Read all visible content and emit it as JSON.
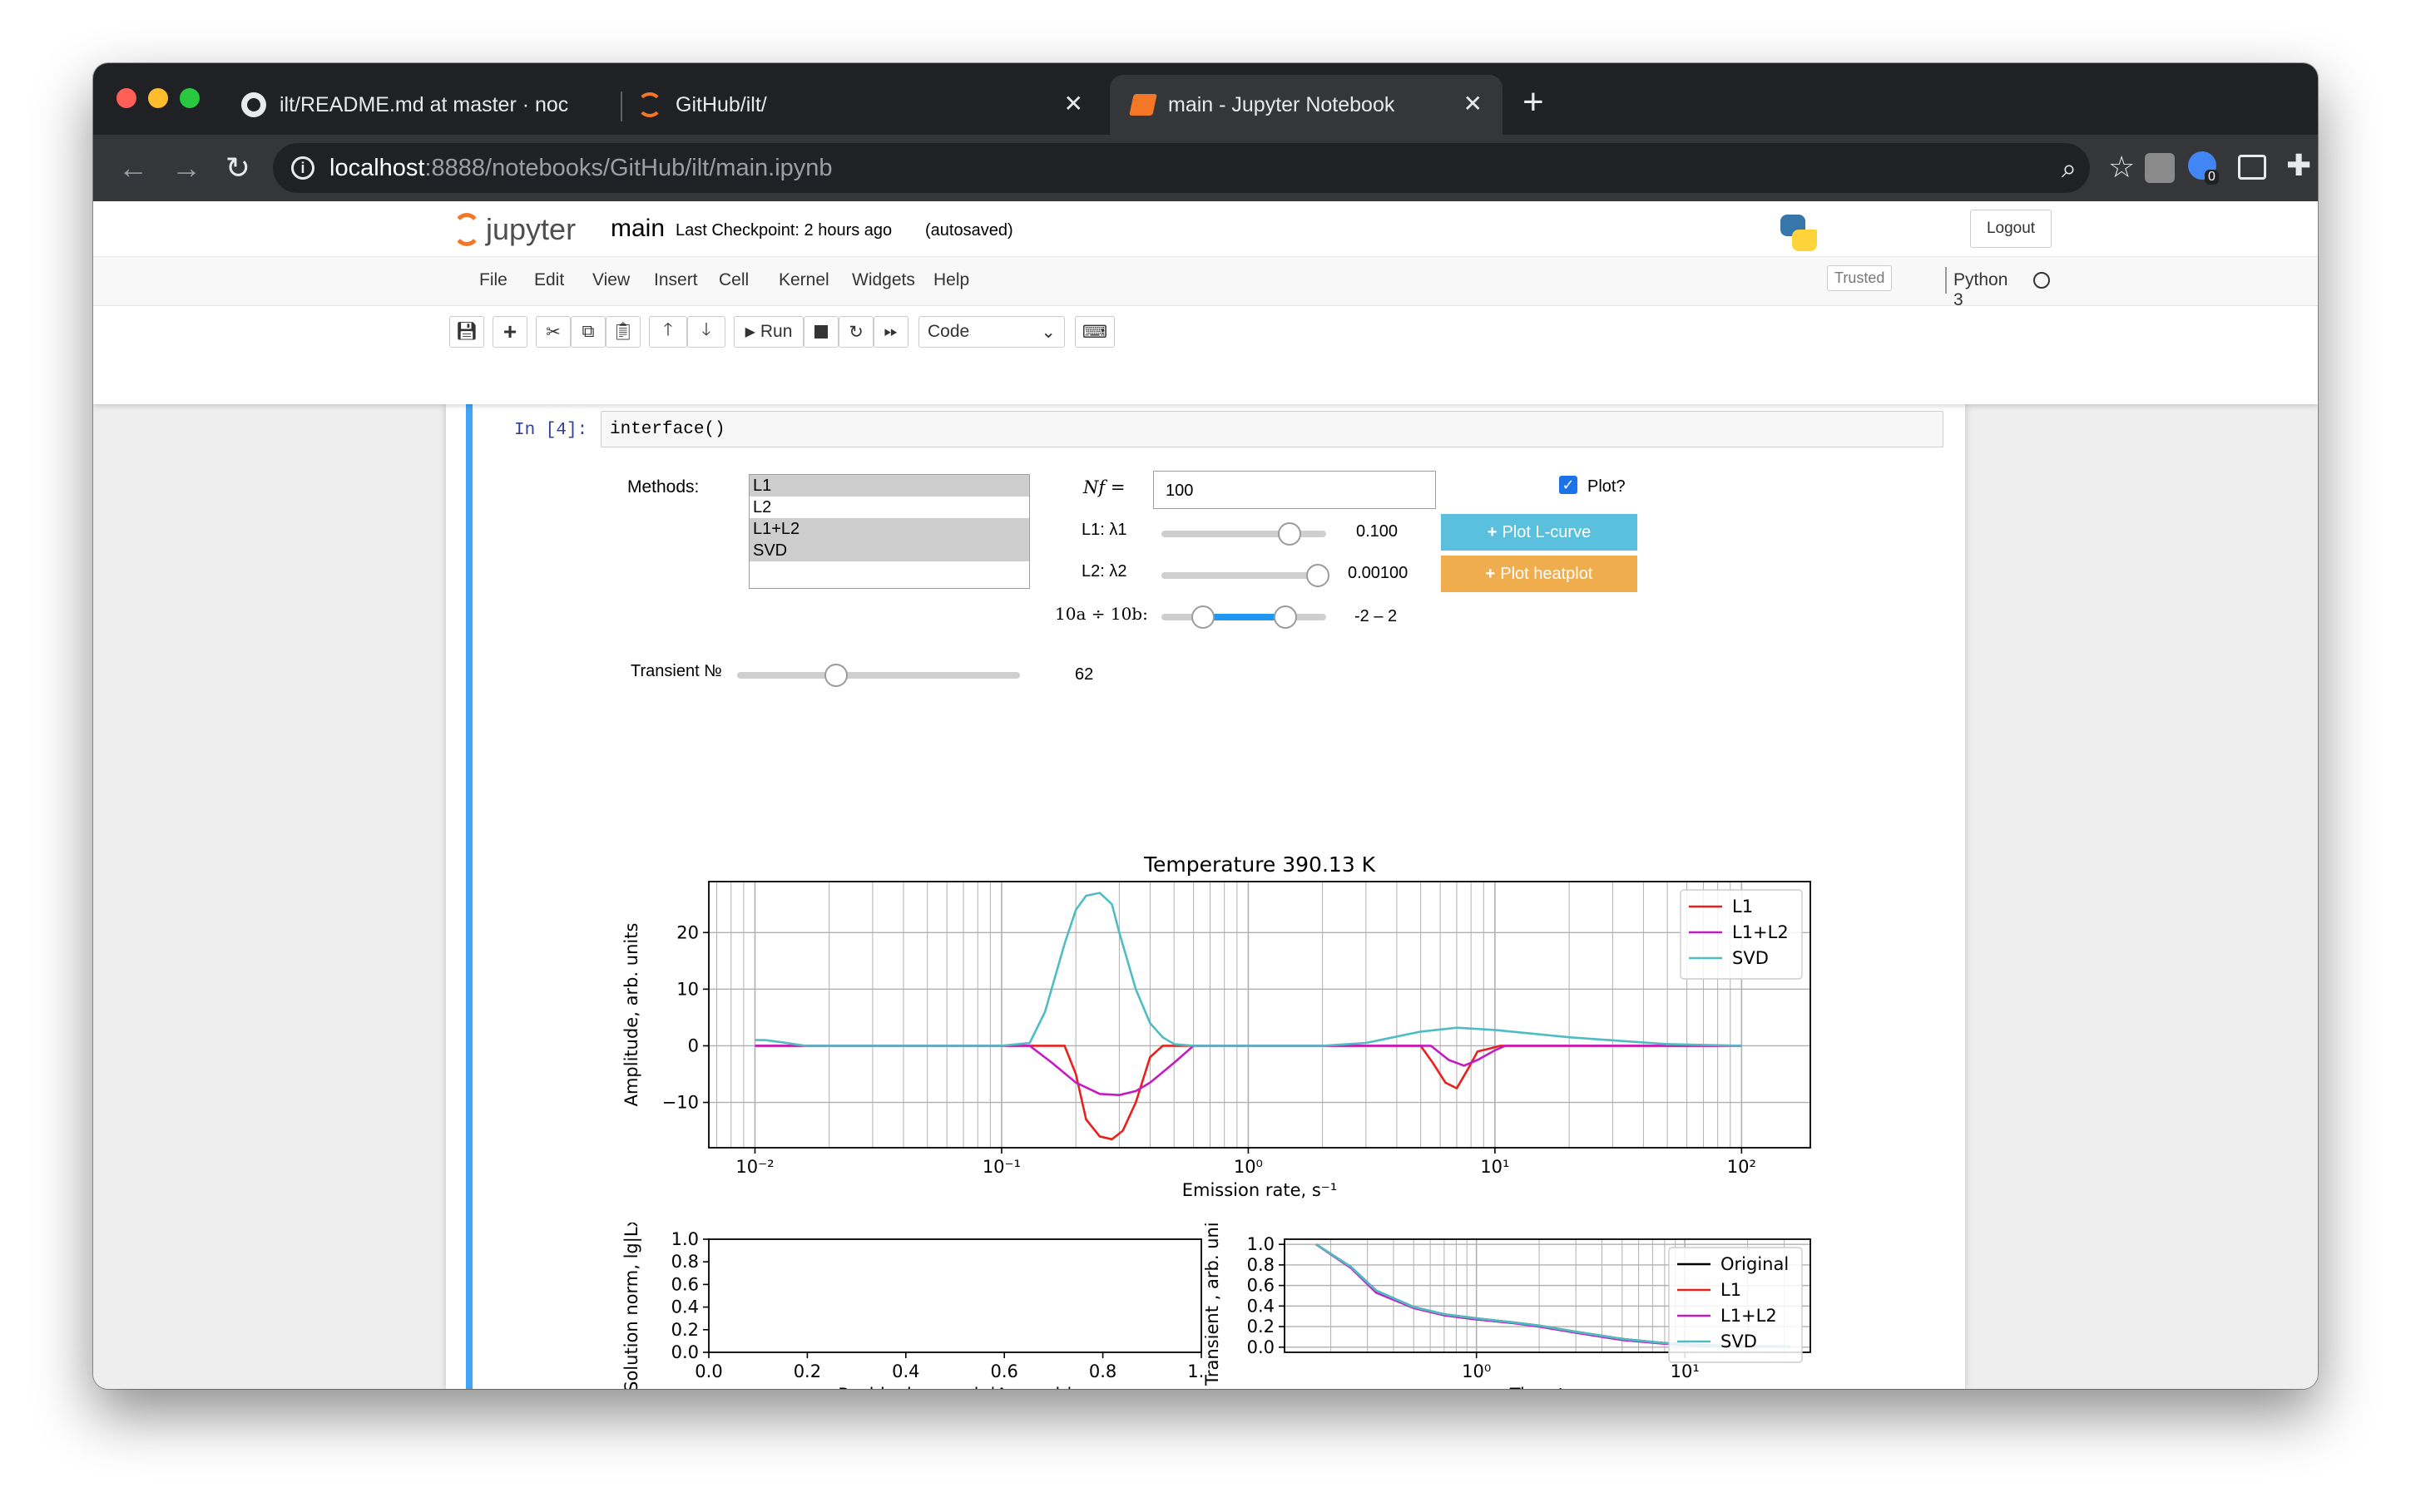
{
  "browser": {
    "tabs": [
      {
        "title": "ilt/README.md at master · noc",
        "icon": "github-icon"
      },
      {
        "title": "GitHub/ilt/",
        "icon": "jupyter-icon"
      },
      {
        "title": "main - Jupyter Notebook",
        "icon": "notebook-icon"
      }
    ],
    "url_host": "localhost",
    "url_path": ":8888/notebooks/GitHub/ilt/main.ipynb",
    "extension_badge": "0"
  },
  "jupyter": {
    "logo_text": "jupyter",
    "notebook_name": "main",
    "checkpoint": "Last Checkpoint: 2 hours ago",
    "autosaved": "(autosaved)",
    "logout": "Logout",
    "menu": [
      "File",
      "Edit",
      "View",
      "Insert",
      "Cell",
      "Kernel",
      "Widgets",
      "Help"
    ],
    "trusted": "Trusted",
    "kernel": "Python 3",
    "run_label": "Run",
    "cell_type": "Code"
  },
  "cell": {
    "prompt": "In [4]:",
    "code": "interface()"
  },
  "widgets": {
    "methods_label": "Methods:",
    "methods": [
      {
        "label": "L1",
        "selected": true
      },
      {
        "label": "L2",
        "selected": false
      },
      {
        "label": "L1+L2",
        "selected": true
      },
      {
        "label": "SVD",
        "selected": true
      }
    ],
    "nf_label": "Nf =",
    "nf_value": "100",
    "plot_label": "Plot?",
    "plot_checked": true,
    "l1_label": "L1: λ1",
    "l1_value": "0.100",
    "l1_fraction": 0.78,
    "l2_label": "L2: λ2",
    "l2_value": "0.00100",
    "l2_fraction": 0.95,
    "range_label": "10a ÷ 10b:",
    "range_value": "-2 – 2",
    "range_from": 0.25,
    "range_to": 0.75,
    "plot_lcurve": "Plot L-curve",
    "plot_heatplot": "Plot heatplot",
    "transient_label": "Transient №",
    "transient_value": "62",
    "transient_fraction": 0.35
  },
  "colors": {
    "accent": "#42a5f5",
    "lcurve_button": "#5bc0de",
    "heatplot_button": "#f0ad4e",
    "l1": "#e8211d",
    "l1l2": "#c41ac4",
    "svd": "#4fbcc4",
    "original": "#000000"
  },
  "chart_data": [
    {
      "type": "line",
      "title": "Temperature 390.13 K",
      "xlabel": "Emission rate, s⁻¹",
      "ylabel": "Amplitude, arb. units",
      "xscale": "log",
      "xlim": [
        0.0065,
        190
      ],
      "ylim": [
        -18,
        29
      ],
      "xticks": [
        "10⁻²",
        "10⁻¹",
        "10⁰",
        "10¹",
        "10²"
      ],
      "yticks": [
        -10,
        0,
        10,
        20
      ],
      "legend": "top-right",
      "grid": true,
      "series": [
        {
          "name": "L1",
          "x": [
            0.01,
            0.013,
            0.05,
            0.1,
            0.13,
            0.18,
            0.2,
            0.22,
            0.25,
            0.28,
            0.31,
            0.35,
            0.4,
            0.45,
            0.6,
            1,
            3,
            5,
            5.6,
            6.3,
            7,
            7.8,
            8.5,
            9.5,
            10.5,
            20,
            100
          ],
          "y": [
            0,
            0,
            0,
            0,
            0,
            0,
            -5,
            -13,
            -16,
            -16.5,
            -15,
            -10,
            -2,
            0,
            0,
            0,
            0,
            0,
            -3,
            -6.5,
            -7.5,
            -4,
            -1,
            -0.5,
            0,
            0,
            0
          ]
        },
        {
          "name": "L1+L2",
          "x": [
            0.01,
            0.013,
            0.05,
            0.1,
            0.13,
            0.16,
            0.2,
            0.25,
            0.3,
            0.35,
            0.4,
            0.5,
            0.6,
            1,
            3,
            5.5,
            6.5,
            7.5,
            8.5,
            10,
            11,
            100
          ],
          "y": [
            0,
            0,
            0,
            0,
            0,
            -3,
            -6.5,
            -8.5,
            -8.7,
            -8,
            -6.5,
            -3,
            0,
            0,
            0,
            0,
            -2.5,
            -3.5,
            -2.5,
            -0.8,
            0,
            0
          ]
        },
        {
          "name": "SVD",
          "x": [
            0.01,
            0.011,
            0.013,
            0.016,
            0.05,
            0.1,
            0.13,
            0.15,
            0.18,
            0.2,
            0.22,
            0.25,
            0.28,
            0.3,
            0.35,
            0.4,
            0.45,
            0.5,
            0.6,
            1,
            2,
            3,
            5,
            7,
            10,
            20,
            50,
            100
          ],
          "y": [
            1,
            1,
            0.6,
            0,
            0,
            0,
            0.5,
            6,
            18,
            24,
            26.5,
            27,
            25,
            20,
            10,
            4,
            1.5,
            0.3,
            0,
            0,
            0,
            0.5,
            2.5,
            3.2,
            2.8,
            1.5,
            0.3,
            0
          ]
        }
      ]
    },
    {
      "type": "line",
      "title": "",
      "xlabel": "Residual norm, lg|Axα − b|",
      "ylabel": "Solution norm, lg|Lxα|",
      "xlim": [
        0,
        1
      ],
      "ylim": [
        0,
        1
      ],
      "xticks": [
        0.0,
        0.2,
        0.4,
        0.6,
        0.8,
        1.0
      ],
      "yticks": [
        0.0,
        0.2,
        0.4,
        0.6,
        0.8,
        1.0
      ],
      "grid": false,
      "series": []
    },
    {
      "type": "line",
      "title": "",
      "xlabel": "Time t, s",
      "ylabel": "Transient , arb. units",
      "xscale": "log",
      "xlim": [
        0.12,
        40
      ],
      "ylim": [
        -0.05,
        1.05
      ],
      "xticks": [
        "10⁰",
        "10¹"
      ],
      "yticks": [
        0.0,
        0.2,
        0.4,
        0.6,
        0.8,
        1.0
      ],
      "legend": "top-right",
      "grid": true,
      "series": [
        {
          "name": "Original",
          "x": [
            0.17,
            0.25,
            0.33,
            0.5,
            0.7,
            1,
            1.5,
            2,
            3,
            5,
            8,
            12,
            20,
            32
          ],
          "y": [
            1.0,
            0.78,
            0.55,
            0.39,
            0.32,
            0.28,
            0.24,
            0.21,
            0.15,
            0.08,
            0.04,
            0.02,
            0.01,
            0.005
          ]
        },
        {
          "name": "L1",
          "x": [
            0.17,
            0.25,
            0.33,
            0.5,
            0.7,
            1,
            1.5,
            2,
            3,
            5,
            8,
            12,
            20,
            32
          ],
          "y": [
            1.0,
            0.77,
            0.54,
            0.38,
            0.31,
            0.27,
            0.235,
            0.205,
            0.145,
            0.075,
            0.035,
            0.015,
            0.008,
            0.004
          ]
        },
        {
          "name": "L1+L2",
          "x": [
            0.17,
            0.25,
            0.33,
            0.5,
            0.7,
            1,
            1.5,
            2,
            3,
            5,
            8,
            12,
            20,
            32
          ],
          "y": [
            1.0,
            0.77,
            0.53,
            0.38,
            0.31,
            0.27,
            0.235,
            0.2,
            0.14,
            0.07,
            0.033,
            0.014,
            0.007,
            0.003
          ]
        },
        {
          "name": "SVD",
          "x": [
            0.17,
            0.25,
            0.33,
            0.5,
            0.7,
            1,
            1.5,
            2,
            3,
            5,
            8,
            12,
            20,
            32
          ],
          "y": [
            1.0,
            0.78,
            0.55,
            0.39,
            0.32,
            0.28,
            0.24,
            0.21,
            0.15,
            0.08,
            0.04,
            0.018,
            0.009,
            0.004
          ]
        }
      ]
    }
  ]
}
